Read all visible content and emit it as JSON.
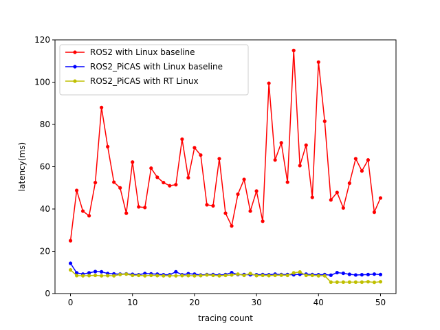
{
  "chart_data": {
    "type": "line",
    "title": "",
    "xlabel": "tracing count",
    "ylabel": "latency(ms)",
    "xlim": [
      -2.5,
      52.5
    ],
    "ylim": [
      0,
      120
    ],
    "xticks": [
      0,
      10,
      20,
      30,
      40,
      50
    ],
    "yticks": [
      0,
      20,
      40,
      60,
      80,
      100,
      120
    ],
    "grid": false,
    "legend_position": "top-left",
    "x": [
      0,
      1,
      2,
      3,
      4,
      5,
      6,
      7,
      8,
      9,
      10,
      11,
      12,
      13,
      14,
      15,
      16,
      17,
      18,
      19,
      20,
      21,
      22,
      23,
      24,
      25,
      26,
      27,
      28,
      29,
      30,
      31,
      32,
      33,
      34,
      35,
      36,
      37,
      38,
      39,
      40,
      41,
      42,
      43,
      44,
      45,
      46,
      47,
      48,
      49,
      50
    ],
    "series": [
      {
        "name": "ROS2 with Linux baseline",
        "color": "#ff0000",
        "values": [
          25,
          48.8,
          39,
          36.8,
          52.5,
          88,
          69.5,
          52.7,
          50,
          38,
          62.2,
          41,
          40.7,
          59.3,
          55,
          52.5,
          51,
          51.5,
          73,
          54.8,
          69,
          65.5,
          42,
          41.5,
          63.8,
          38,
          32,
          47,
          54,
          39,
          48.5,
          34.2,
          99.5,
          63.2,
          71.3,
          52.7,
          115,
          60.5,
          70.2,
          45.5,
          109.5,
          81.5,
          44.3,
          47.8,
          40.5,
          52.2,
          63.8,
          58,
          63.2,
          38.5,
          45.2
        ]
      },
      {
        "name": "ROS2_PiCAS with Linux baseline",
        "color": "#0000ff",
        "values": [
          14.3,
          9.8,
          9.2,
          9.8,
          10.4,
          10.3,
          9.5,
          9.3,
          9.2,
          9.3,
          9.1,
          8.9,
          9.5,
          9.3,
          9.2,
          8.9,
          8.9,
          10.3,
          8.9,
          9.4,
          9.2,
          8.8,
          9.0,
          9.0,
          8.8,
          9.0,
          9.9,
          9.0,
          9.0,
          8.9,
          8.9,
          9.0,
          8.9,
          9.2,
          9.0,
          9.0,
          8.9,
          9.1,
          9.2,
          9.0,
          8.9,
          9.0,
          8.7,
          9.9,
          9.6,
          9.1,
          8.8,
          8.9,
          9.0,
          9.2,
          9.0
        ]
      },
      {
        "name": "ROS2_PiCAS with RT Linux",
        "color": "#bfbf00",
        "values": [
          11.2,
          8.5,
          8.4,
          8.5,
          8.6,
          8.4,
          8.5,
          8.4,
          9.0,
          9.2,
          8.6,
          8.6,
          8.4,
          8.6,
          8.5,
          8.4,
          8.4,
          8.4,
          8.5,
          8.5,
          8.4,
          8.5,
          8.8,
          8.6,
          8.4,
          8.6,
          8.8,
          9.2,
          8.6,
          9.5,
          8.5,
          8.6,
          8.5,
          8.6,
          8.7,
          8.6,
          9.8,
          10.2,
          8.6,
          8.6,
          8.4,
          8.4,
          5.4,
          5.4,
          5.4,
          5.4,
          5.4,
          5.4,
          5.6,
          5.3,
          5.6
        ]
      }
    ]
  }
}
